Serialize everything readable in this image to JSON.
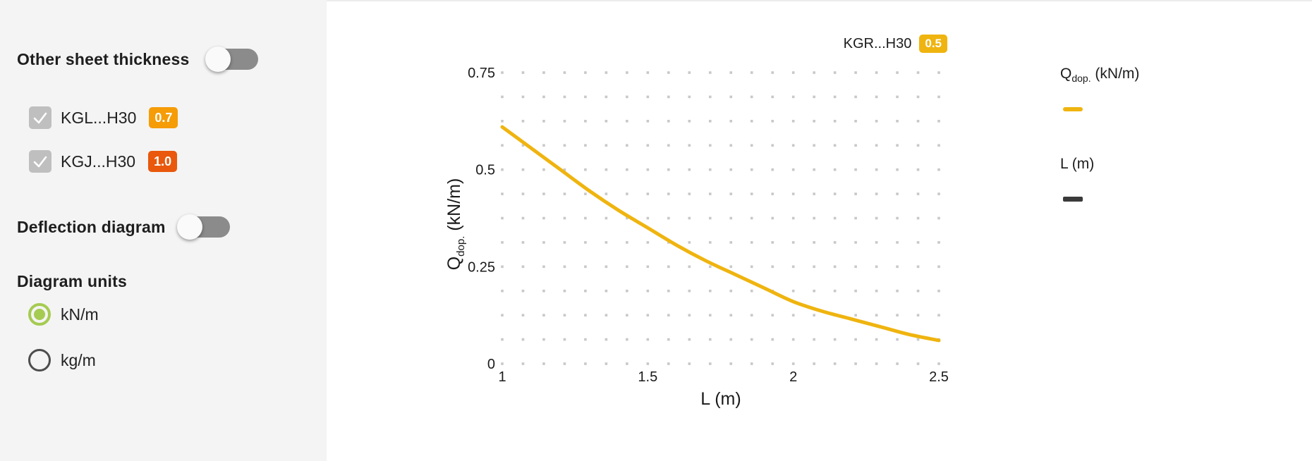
{
  "sidebar": {
    "other_sheet_thickness": {
      "label": "Other sheet thickness",
      "enabled": false
    },
    "profiles": [
      {
        "label": "KGL...H30",
        "badge": "0.7",
        "badge_color": "#f59c07",
        "checked": true
      },
      {
        "label": "KGJ...H30",
        "badge": "1.0",
        "badge_color": "#e9580c",
        "checked": true
      }
    ],
    "deflection_diagram": {
      "label": "Deflection diagram",
      "enabled": false
    },
    "diagram_units": {
      "heading": "Diagram units",
      "options": [
        {
          "label": "kN/m",
          "selected": true
        },
        {
          "label": "kg/m",
          "selected": false
        }
      ]
    }
  },
  "main": {
    "active_series": {
      "label": "KGR...H30",
      "badge": "0.5",
      "badge_color": "#efb40f"
    },
    "legend": {
      "q": {
        "base": "Q",
        "sub": "dop.",
        "rest": " (kN/m)",
        "swatch_color": "#efb40f"
      },
      "l": {
        "label": "L (m)",
        "swatch_color": "#3a3a3a"
      }
    }
  },
  "colors": {
    "curve_yellow": "#efb40f",
    "radio_green": "#a5cb51",
    "sidebar_bg": "#f4f4f4",
    "grid_dot": "#c8c8c8"
  },
  "chart_data": {
    "type": "line",
    "title": "KGR...H30 (0.5)",
    "xlabel": "L (m)",
    "ylabel": "Q dop. (kN/m)",
    "ylabel_parts": {
      "base": "Q",
      "sub": "dop.",
      "rest": " (kN/m)"
    },
    "xlim": [
      1,
      2.5
    ],
    "ylim": [
      0,
      0.75
    ],
    "xticks": [
      [
        1,
        "1"
      ],
      [
        1.5,
        "1.5"
      ],
      [
        2,
        "2"
      ],
      [
        2.5,
        "2.5"
      ]
    ],
    "yticks": [
      [
        0,
        "0"
      ],
      [
        0.25,
        "0.25"
      ],
      [
        0.5,
        "0.5"
      ],
      [
        0.75,
        "0.75"
      ]
    ],
    "grid": {
      "style": "dotted",
      "cols": 22,
      "rows": 13,
      "color": "#c8c8c8"
    },
    "legend_position": "right",
    "series": [
      {
        "name": "KGR...H30 (0.5)",
        "color": "#efb40f",
        "x": [
          1.0,
          1.1,
          1.2,
          1.3,
          1.4,
          1.5,
          1.6,
          1.7,
          1.8,
          1.9,
          2.0,
          2.1,
          2.2,
          2.3,
          2.4,
          2.5
        ],
        "y": [
          0.61,
          0.555,
          0.5,
          0.445,
          0.395,
          0.35,
          0.305,
          0.265,
          0.23,
          0.195,
          0.16,
          0.135,
          0.115,
          0.095,
          0.075,
          0.06
        ]
      }
    ]
  }
}
